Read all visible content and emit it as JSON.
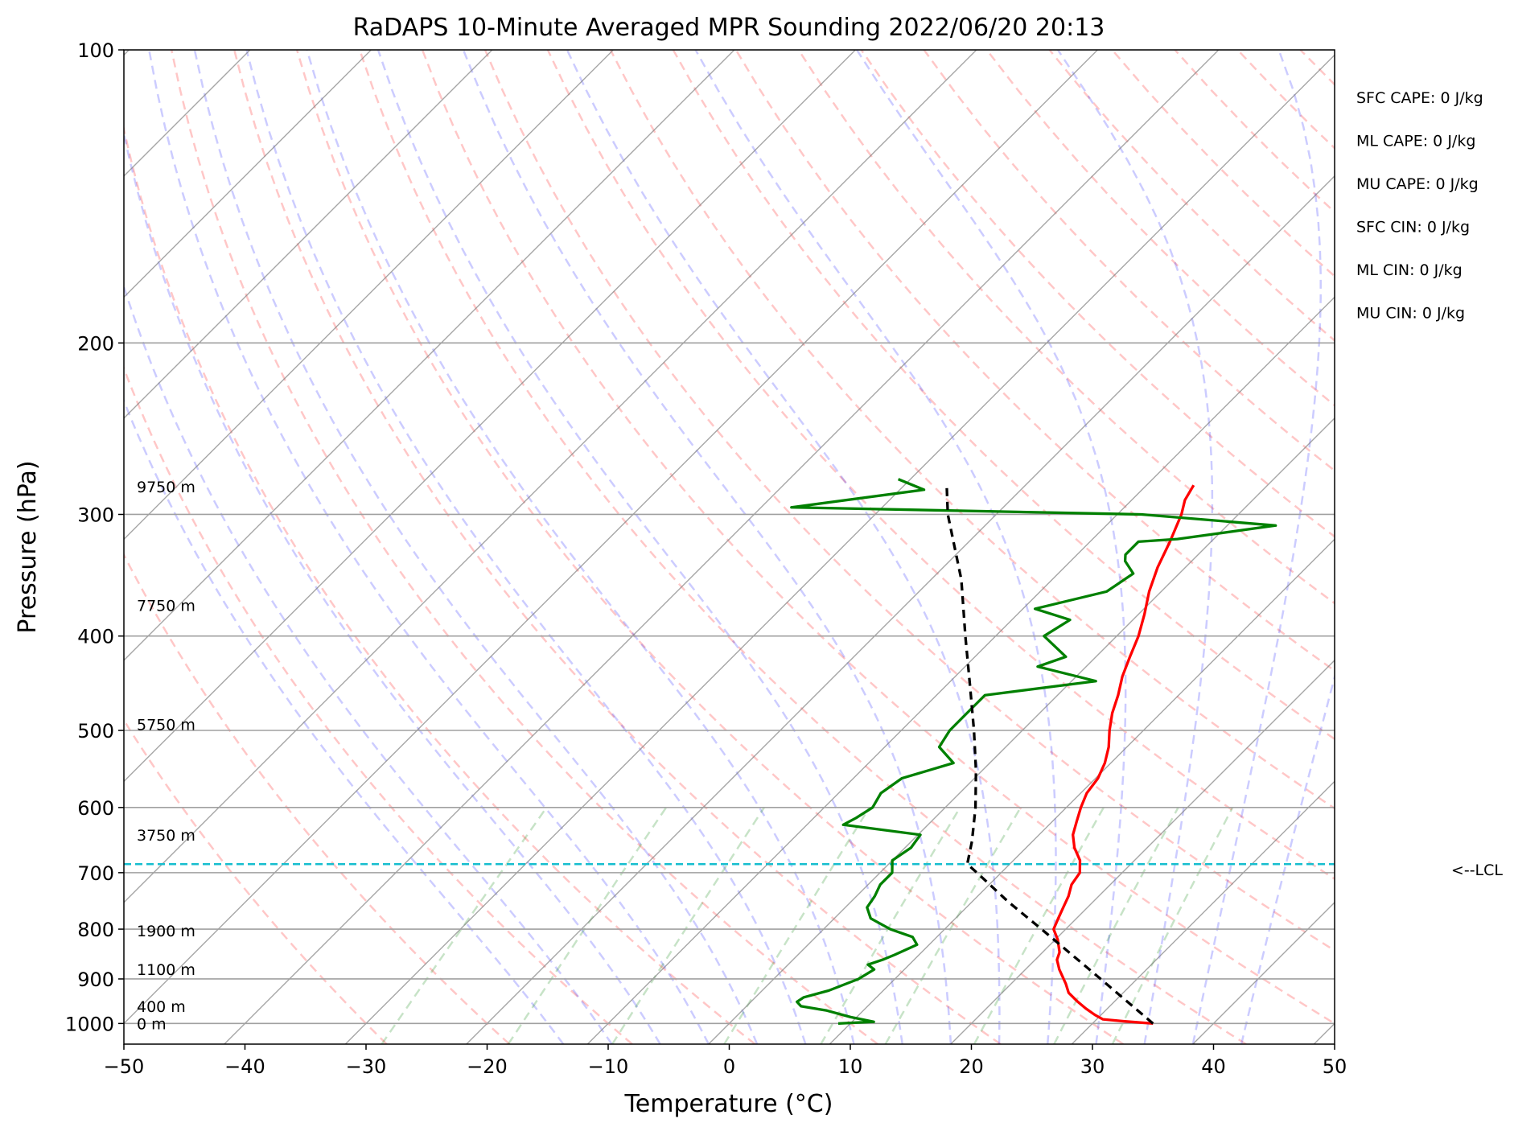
{
  "chart_data": {
    "type": "line",
    "title": "RaDAPS 10-Minute Averaged MPR Sounding 2022/06/20 20:13",
    "xlabel": "Temperature (°C)",
    "ylabel": "Pressure (hPa)",
    "xlim": [
      -50,
      50
    ],
    "ylim": [
      1050,
      100
    ],
    "y_scale": "log",
    "grid": true,
    "x_ticks": [
      "−50",
      "−40",
      "−30",
      "−20",
      "−10",
      "0",
      "10",
      "20",
      "30",
      "40",
      "50"
    ],
    "y_ticks": [
      {
        "p": 100,
        "label": "100"
      },
      {
        "p": 200,
        "label": "200"
      },
      {
        "p": 300,
        "label": "300"
      },
      {
        "p": 400,
        "label": "400"
      },
      {
        "p": 500,
        "label": "500"
      },
      {
        "p": 600,
        "label": "600"
      },
      {
        "p": 700,
        "label": "700"
      },
      {
        "p": 800,
        "label": "800"
      },
      {
        "p": 900,
        "label": "900"
      },
      {
        "p": 1000,
        "label": "1000"
      }
    ],
    "height_labels": [
      {
        "p": 1000,
        "label": "0 m"
      },
      {
        "p": 960,
        "label": "400 m"
      },
      {
        "p": 880,
        "label": "1100 m"
      },
      {
        "p": 803,
        "label": "1900 m"
      },
      {
        "p": 640,
        "label": "3750 m"
      },
      {
        "p": 493,
        "label": "5750 m"
      },
      {
        "p": 372,
        "label": "7750 m"
      },
      {
        "p": 281,
        "label": "9750 m"
      }
    ],
    "indices": [
      "SFC CAPE: 0 J/kg",
      "ML CAPE: 0 J/kg",
      "MU CAPE: 0 J/kg",
      "SFC CIN: 0 J/kg",
      "ML CIN: 0 J/kg",
      "MU CIN: 0 J/kg"
    ],
    "lcl": {
      "p": 686,
      "label": "<--LCL"
    },
    "series": [
      {
        "color": "#ff0000",
        "points": [
          [
            1000,
            35.0
          ],
          [
            995,
            32.5
          ],
          [
            990,
            30.5
          ],
          [
            980,
            29.5
          ],
          [
            965,
            28.2
          ],
          [
            950,
            27.0
          ],
          [
            930,
            25.5
          ],
          [
            910,
            24.5
          ],
          [
            880,
            22.8
          ],
          [
            860,
            21.8
          ],
          [
            845,
            21.4
          ],
          [
            820,
            20.2
          ],
          [
            800,
            19.0
          ],
          [
            780,
            18.5
          ],
          [
            760,
            18.0
          ],
          [
            740,
            17.5
          ],
          [
            720,
            16.8
          ],
          [
            700,
            16.5
          ],
          [
            680,
            15.5
          ],
          [
            660,
            14.0
          ],
          [
            640,
            12.8
          ],
          [
            620,
            12.0
          ],
          [
            600,
            11.2
          ],
          [
            580,
            10.5
          ],
          [
            560,
            10.2
          ],
          [
            540,
            9.5
          ],
          [
            520,
            8.5
          ],
          [
            500,
            7.2
          ],
          [
            480,
            6.0
          ],
          [
            460,
            5.0
          ],
          [
            440,
            3.8
          ],
          [
            420,
            2.8
          ],
          [
            400,
            1.8
          ],
          [
            380,
            0.5
          ],
          [
            360,
            -1.0
          ],
          [
            340,
            -2.3
          ],
          [
            320,
            -3.4
          ],
          [
            300,
            -4.7
          ],
          [
            290,
            -5.6
          ],
          [
            280,
            -6.1
          ]
        ]
      },
      {
        "color": "#008000",
        "points": [
          [
            1000,
            9.0
          ],
          [
            996,
            11.8
          ],
          [
            985,
            9.5
          ],
          [
            970,
            7.0
          ],
          [
            960,
            4.5
          ],
          [
            950,
            3.8
          ],
          [
            940,
            4.0
          ],
          [
            925,
            5.5
          ],
          [
            900,
            7.0
          ],
          [
            880,
            7.5
          ],
          [
            870,
            6.6
          ],
          [
            860,
            7.4
          ],
          [
            850,
            8.0
          ],
          [
            830,
            9.0
          ],
          [
            815,
            8.0
          ],
          [
            800,
            5.5
          ],
          [
            780,
            3.0
          ],
          [
            760,
            1.8
          ],
          [
            740,
            1.5
          ],
          [
            720,
            1.0
          ],
          [
            700,
            1.0
          ],
          [
            680,
            0.0
          ],
          [
            660,
            0.5
          ],
          [
            640,
            0.2
          ],
          [
            625,
            -7.0
          ],
          [
            615,
            -6.5
          ],
          [
            600,
            -6.0
          ],
          [
            580,
            -6.5
          ],
          [
            560,
            -6.0
          ],
          [
            540,
            -3.0
          ],
          [
            520,
            -5.5
          ],
          [
            500,
            -6.0
          ],
          [
            480,
            -6.0
          ],
          [
            460,
            -6.0
          ],
          [
            445,
            2.0
          ],
          [
            430,
            -4.0
          ],
          [
            420,
            -2.5
          ],
          [
            400,
            -6.0
          ],
          [
            385,
            -5.2
          ],
          [
            375,
            -9.0
          ],
          [
            360,
            -4.5
          ],
          [
            345,
            -3.8
          ],
          [
            335,
            -5.5
          ],
          [
            330,
            -6.0
          ],
          [
            320,
            -6.0
          ],
          [
            318,
            -3.0
          ],
          [
            308,
            4.0
          ],
          [
            300,
            -8.0
          ],
          [
            295,
            -37.5
          ],
          [
            283,
            -28.0
          ],
          [
            276,
            -31.0
          ]
        ]
      },
      {
        "color": "#000000",
        "dash": "10,7",
        "points": [
          [
            1000,
            35.0
          ],
          [
            900,
            27.0
          ],
          [
            800,
            18.0
          ],
          [
            750,
            13.0
          ],
          [
            700,
            8.0
          ],
          [
            686,
            6.5
          ],
          [
            650,
            5.0
          ],
          [
            600,
            2.5
          ],
          [
            550,
            -0.5
          ],
          [
            500,
            -4.0
          ],
          [
            450,
            -8.0
          ],
          [
            400,
            -12.5
          ],
          [
            350,
            -17.5
          ],
          [
            300,
            -24.0
          ],
          [
            280,
            -26.5
          ]
        ]
      }
    ]
  }
}
